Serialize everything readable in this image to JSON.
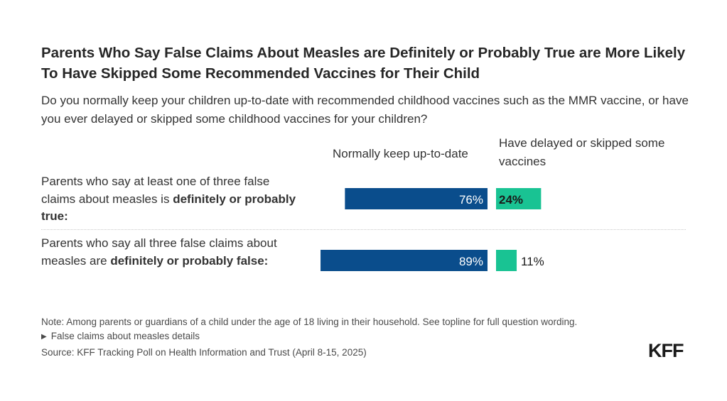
{
  "title": "Parents Who Say False Claims About Measles are Definitely or Probably True are More Likely To Have Skipped Some Recommended Vaccines for Their Child",
  "subtitle": "Do you normally keep your children up-to-date with recommended childhood vaccines such as the MMR vaccine, or have you ever delayed or skipped some childhood vaccines for your children?",
  "colors": {
    "keep": "#0a4d8c",
    "skipped": "#19c393",
    "divider": "#c8c8c8"
  },
  "chart_data": {
    "type": "bar",
    "orientation": "horizontal-diverging",
    "series": [
      {
        "name": "Normally keep up-to-date",
        "values": [
          76,
          89
        ]
      },
      {
        "name": "Have delayed or skipped some vaccines",
        "values": [
          24,
          11
        ]
      }
    ],
    "categories": [
      {
        "pre": "Parents who say at least one of three false claims about measles is ",
        "bold": "definitely or probably true:"
      },
      {
        "pre": "Parents who say all three false claims about measles are ",
        "bold": "definitely or probably false:"
      }
    ],
    "value_labels": [
      [
        "76%",
        "24%"
      ],
      [
        "89%",
        "11%"
      ]
    ]
  },
  "notes": {
    "note": "Note: Among parents or guardians of a child under the age of 18 living in their household. See topline for full question wording.",
    "details": "False claims about measles details",
    "source": "Source: KFF Tracking Poll on Health Information and Trust (April 8-15, 2025)"
  },
  "logo": "KFF"
}
